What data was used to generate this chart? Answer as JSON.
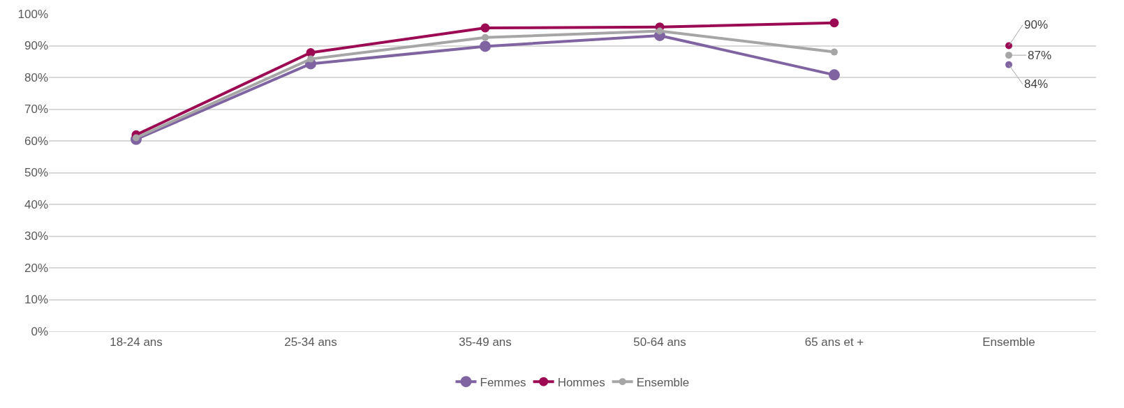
{
  "chart_data": {
    "type": "line",
    "categories": [
      "18-24 ans",
      "25-34 ans",
      "35-49 ans",
      "50-64 ans",
      "65 ans et +",
      "Ensemble"
    ],
    "series": [
      {
        "name": "Femmes",
        "color": "#8064a2",
        "values": [
          60.5,
          84.3,
          89.8,
          93.2,
          80.8,
          null
        ]
      },
      {
        "name": "Hommes",
        "color": "#9b0a52",
        "values": [
          61.9,
          87.8,
          95.6,
          95.9,
          97.2,
          null
        ]
      },
      {
        "name": "Ensemble",
        "color": "#a6a6a6",
        "values": [
          61,
          85.8,
          92.6,
          94.6,
          88,
          null
        ]
      },
      {
        "type": "scatter",
        "color": "#9b0a52",
        "values": [
          null,
          null,
          null,
          null,
          null,
          90
        ],
        "value_labels": [
          null,
          null,
          null,
          null,
          null,
          "90%"
        ]
      },
      {
        "type": "scatter",
        "color": "#a6a6a6",
        "values": [
          null,
          null,
          null,
          null,
          null,
          87
        ],
        "value_labels": [
          null,
          null,
          null,
          null,
          null,
          "87%"
        ]
      },
      {
        "type": "scatter",
        "color": "#8064a2",
        "values": [
          null,
          null,
          null,
          null,
          null,
          84
        ],
        "value_labels": [
          null,
          null,
          null,
          null,
          null,
          "84%"
        ]
      }
    ],
    "ylim": [
      0,
      100
    ],
    "yticks": [
      {
        "value": 0,
        "label": "0%"
      },
      {
        "value": 10,
        "label": "10%"
      },
      {
        "value": 20,
        "label": "20%"
      },
      {
        "value": 30,
        "label": "30%"
      },
      {
        "value": 40,
        "label": "40%"
      },
      {
        "value": 50,
        "label": "50%"
      },
      {
        "value": 60,
        "label": "60%"
      },
      {
        "value": 70,
        "label": "70%"
      },
      {
        "value": 80,
        "label": "80%"
      },
      {
        "value": 90,
        "label": "90%"
      },
      {
        "value": 100,
        "label": "100%"
      }
    ],
    "grid": "y",
    "legend": "bottom",
    "marker": "circle",
    "line_style": "solid"
  }
}
